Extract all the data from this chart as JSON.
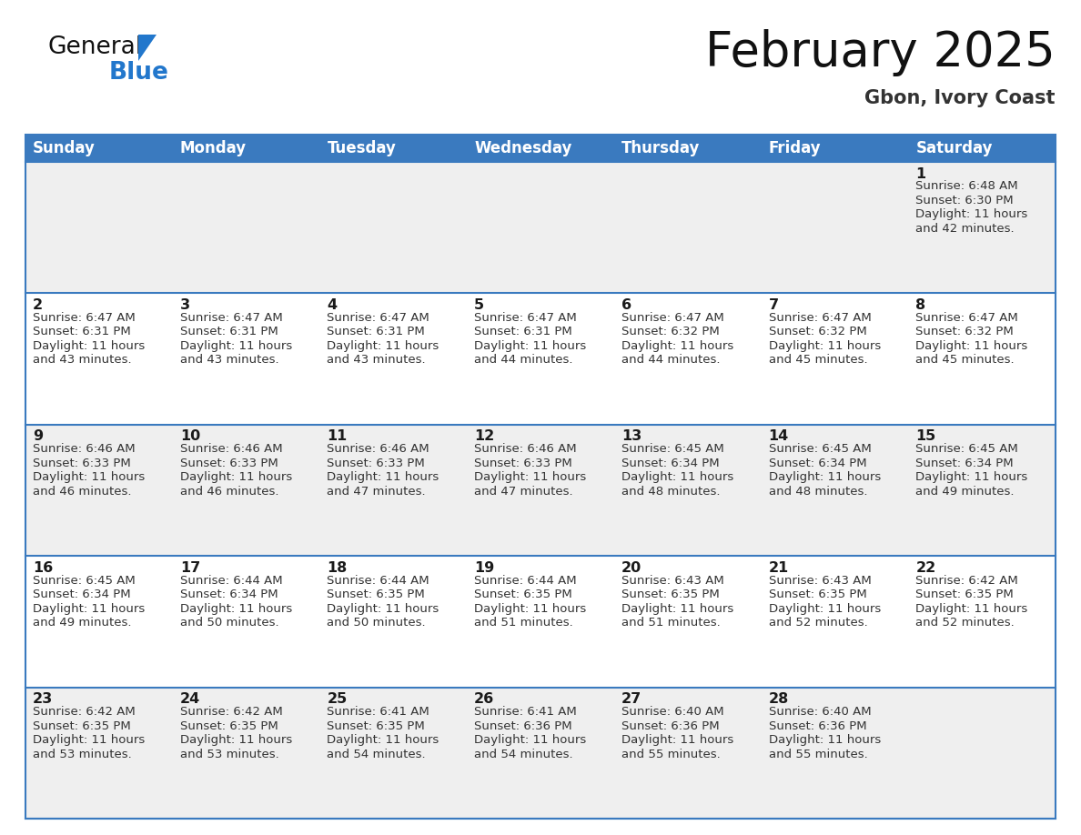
{
  "title": "February 2025",
  "subtitle": "Gbon, Ivory Coast",
  "days_of_week": [
    "Sunday",
    "Monday",
    "Tuesday",
    "Wednesday",
    "Thursday",
    "Friday",
    "Saturday"
  ],
  "header_bg_color": "#3a7abf",
  "header_text_color": "#ffffff",
  "cell_bg_white": "#ffffff",
  "cell_bg_gray": "#efefef",
  "day_num_color": "#1a1a1a",
  "info_text_color": "#333333",
  "border_color": "#3a7abf",
  "bg_color": "#ffffff",
  "logo_general_color": "#111111",
  "logo_blue_color": "#2277cc",
  "logo_triangle_color": "#2277cc",
  "calendar_data": [
    {
      "day": 1,
      "week_row": 0,
      "col": 6,
      "sunrise": "6:48 AM",
      "sunset": "6:30 PM",
      "daylight_hours": 11,
      "daylight_minutes": 42
    },
    {
      "day": 2,
      "week_row": 1,
      "col": 0,
      "sunrise": "6:47 AM",
      "sunset": "6:31 PM",
      "daylight_hours": 11,
      "daylight_minutes": 43
    },
    {
      "day": 3,
      "week_row": 1,
      "col": 1,
      "sunrise": "6:47 AM",
      "sunset": "6:31 PM",
      "daylight_hours": 11,
      "daylight_minutes": 43
    },
    {
      "day": 4,
      "week_row": 1,
      "col": 2,
      "sunrise": "6:47 AM",
      "sunset": "6:31 PM",
      "daylight_hours": 11,
      "daylight_minutes": 43
    },
    {
      "day": 5,
      "week_row": 1,
      "col": 3,
      "sunrise": "6:47 AM",
      "sunset": "6:31 PM",
      "daylight_hours": 11,
      "daylight_minutes": 44
    },
    {
      "day": 6,
      "week_row": 1,
      "col": 4,
      "sunrise": "6:47 AM",
      "sunset": "6:32 PM",
      "daylight_hours": 11,
      "daylight_minutes": 44
    },
    {
      "day": 7,
      "week_row": 1,
      "col": 5,
      "sunrise": "6:47 AM",
      "sunset": "6:32 PM",
      "daylight_hours": 11,
      "daylight_minutes": 45
    },
    {
      "day": 8,
      "week_row": 1,
      "col": 6,
      "sunrise": "6:47 AM",
      "sunset": "6:32 PM",
      "daylight_hours": 11,
      "daylight_minutes": 45
    },
    {
      "day": 9,
      "week_row": 2,
      "col": 0,
      "sunrise": "6:46 AM",
      "sunset": "6:33 PM",
      "daylight_hours": 11,
      "daylight_minutes": 46
    },
    {
      "day": 10,
      "week_row": 2,
      "col": 1,
      "sunrise": "6:46 AM",
      "sunset": "6:33 PM",
      "daylight_hours": 11,
      "daylight_minutes": 46
    },
    {
      "day": 11,
      "week_row": 2,
      "col": 2,
      "sunrise": "6:46 AM",
      "sunset": "6:33 PM",
      "daylight_hours": 11,
      "daylight_minutes": 47
    },
    {
      "day": 12,
      "week_row": 2,
      "col": 3,
      "sunrise": "6:46 AM",
      "sunset": "6:33 PM",
      "daylight_hours": 11,
      "daylight_minutes": 47
    },
    {
      "day": 13,
      "week_row": 2,
      "col": 4,
      "sunrise": "6:45 AM",
      "sunset": "6:34 PM",
      "daylight_hours": 11,
      "daylight_minutes": 48
    },
    {
      "day": 14,
      "week_row": 2,
      "col": 5,
      "sunrise": "6:45 AM",
      "sunset": "6:34 PM",
      "daylight_hours": 11,
      "daylight_minutes": 48
    },
    {
      "day": 15,
      "week_row": 2,
      "col": 6,
      "sunrise": "6:45 AM",
      "sunset": "6:34 PM",
      "daylight_hours": 11,
      "daylight_minutes": 49
    },
    {
      "day": 16,
      "week_row": 3,
      "col": 0,
      "sunrise": "6:45 AM",
      "sunset": "6:34 PM",
      "daylight_hours": 11,
      "daylight_minutes": 49
    },
    {
      "day": 17,
      "week_row": 3,
      "col": 1,
      "sunrise": "6:44 AM",
      "sunset": "6:34 PM",
      "daylight_hours": 11,
      "daylight_minutes": 50
    },
    {
      "day": 18,
      "week_row": 3,
      "col": 2,
      "sunrise": "6:44 AM",
      "sunset": "6:35 PM",
      "daylight_hours": 11,
      "daylight_minutes": 50
    },
    {
      "day": 19,
      "week_row": 3,
      "col": 3,
      "sunrise": "6:44 AM",
      "sunset": "6:35 PM",
      "daylight_hours": 11,
      "daylight_minutes": 51
    },
    {
      "day": 20,
      "week_row": 3,
      "col": 4,
      "sunrise": "6:43 AM",
      "sunset": "6:35 PM",
      "daylight_hours": 11,
      "daylight_minutes": 51
    },
    {
      "day": 21,
      "week_row": 3,
      "col": 5,
      "sunrise": "6:43 AM",
      "sunset": "6:35 PM",
      "daylight_hours": 11,
      "daylight_minutes": 52
    },
    {
      "day": 22,
      "week_row": 3,
      "col": 6,
      "sunrise": "6:42 AM",
      "sunset": "6:35 PM",
      "daylight_hours": 11,
      "daylight_minutes": 52
    },
    {
      "day": 23,
      "week_row": 4,
      "col": 0,
      "sunrise": "6:42 AM",
      "sunset": "6:35 PM",
      "daylight_hours": 11,
      "daylight_minutes": 53
    },
    {
      "day": 24,
      "week_row": 4,
      "col": 1,
      "sunrise": "6:42 AM",
      "sunset": "6:35 PM",
      "daylight_hours": 11,
      "daylight_minutes": 53
    },
    {
      "day": 25,
      "week_row": 4,
      "col": 2,
      "sunrise": "6:41 AM",
      "sunset": "6:35 PM",
      "daylight_hours": 11,
      "daylight_minutes": 54
    },
    {
      "day": 26,
      "week_row": 4,
      "col": 3,
      "sunrise": "6:41 AM",
      "sunset": "6:36 PM",
      "daylight_hours": 11,
      "daylight_minutes": 54
    },
    {
      "day": 27,
      "week_row": 4,
      "col": 4,
      "sunrise": "6:40 AM",
      "sunset": "6:36 PM",
      "daylight_hours": 11,
      "daylight_minutes": 55
    },
    {
      "day": 28,
      "week_row": 4,
      "col": 5,
      "sunrise": "6:40 AM",
      "sunset": "6:36 PM",
      "daylight_hours": 11,
      "daylight_minutes": 55
    }
  ]
}
